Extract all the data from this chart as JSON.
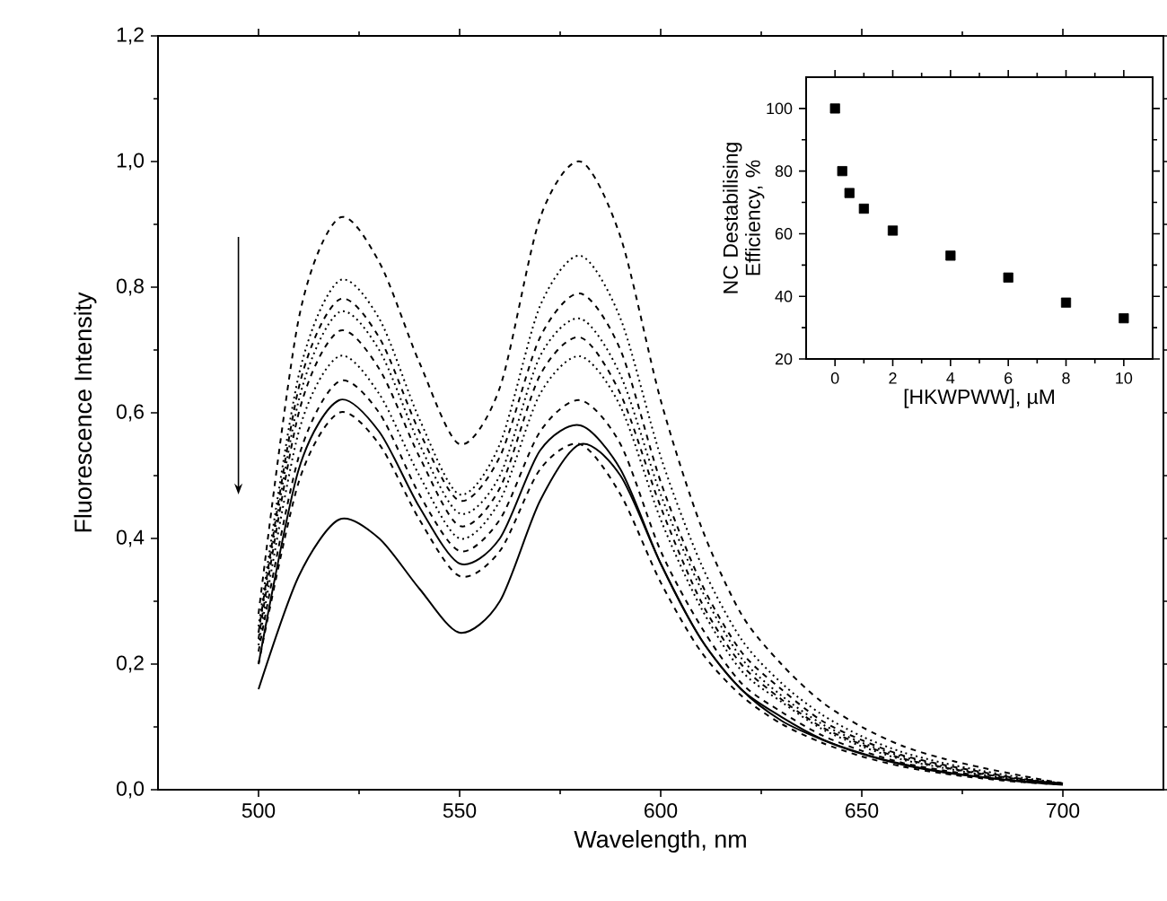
{
  "chart_data": [
    {
      "type": "line",
      "xlabel": "Wavelength, nm",
      "ylabel": "Fluorescence Intensity",
      "xlim": [
        475,
        725
      ],
      "ylim": [
        0,
        1.2
      ],
      "xticks": [
        500,
        550,
        600,
        650,
        700
      ],
      "yticks": [
        {
          "value": 0,
          "label": "0,0"
        },
        {
          "value": 0.2,
          "label": "0,2"
        },
        {
          "value": 0.4,
          "label": "0,4"
        },
        {
          "value": 0.6,
          "label": "0,6"
        },
        {
          "value": 0.8,
          "label": "0,8"
        },
        {
          "value": 1.0,
          "label": "1,0"
        },
        {
          "value": 1.2,
          "label": "1,2"
        }
      ],
      "x": [
        500,
        510,
        520,
        530,
        540,
        550,
        560,
        570,
        580,
        590,
        600,
        610,
        620,
        630,
        640,
        650,
        660,
        670,
        680,
        690,
        700
      ],
      "series": [
        {
          "color": "#000000",
          "line_style": "dashed",
          "values": [
            0.28,
            0.75,
            0.91,
            0.84,
            0.68,
            0.55,
            0.64,
            0.91,
            1.0,
            0.88,
            0.62,
            0.42,
            0.28,
            0.2,
            0.14,
            0.1,
            0.07,
            0.05,
            0.035,
            0.022,
            0.01
          ]
        },
        {
          "color": "#000000",
          "line_style": "dotted",
          "values": [
            0.26,
            0.66,
            0.81,
            0.75,
            0.59,
            0.47,
            0.55,
            0.77,
            0.85,
            0.75,
            0.53,
            0.36,
            0.24,
            0.17,
            0.12,
            0.085,
            0.06,
            0.043,
            0.03,
            0.019,
            0.01
          ]
        },
        {
          "color": "#000000",
          "line_style": "dashed",
          "values": [
            0.25,
            0.64,
            0.78,
            0.72,
            0.57,
            0.46,
            0.53,
            0.72,
            0.79,
            0.7,
            0.49,
            0.33,
            0.22,
            0.16,
            0.11,
            0.079,
            0.055,
            0.04,
            0.028,
            0.017,
            0.01
          ]
        },
        {
          "color": "#000000",
          "line_style": "dotted",
          "values": [
            0.25,
            0.62,
            0.76,
            0.7,
            0.55,
            0.44,
            0.5,
            0.69,
            0.75,
            0.66,
            0.47,
            0.32,
            0.21,
            0.15,
            0.105,
            0.075,
            0.053,
            0.038,
            0.026,
            0.017,
            0.01
          ]
        },
        {
          "color": "#000000",
          "line_style": "dashed",
          "values": [
            0.24,
            0.6,
            0.73,
            0.67,
            0.53,
            0.42,
            0.48,
            0.66,
            0.72,
            0.63,
            0.45,
            0.3,
            0.2,
            0.144,
            0.1,
            0.072,
            0.05,
            0.036,
            0.025,
            0.016,
            0.01
          ]
        },
        {
          "color": "#000000",
          "line_style": "dotted",
          "values": [
            0.23,
            0.57,
            0.69,
            0.63,
            0.5,
            0.4,
            0.46,
            0.63,
            0.69,
            0.61,
            0.43,
            0.29,
            0.19,
            0.14,
            0.097,
            0.069,
            0.048,
            0.035,
            0.024,
            0.015,
            0.01
          ]
        },
        {
          "color": "#000000",
          "line_style": "dashed",
          "values": [
            0.22,
            0.53,
            0.65,
            0.6,
            0.47,
            0.38,
            0.43,
            0.57,
            0.62,
            0.55,
            0.38,
            0.26,
            0.17,
            0.124,
            0.087,
            0.062,
            0.043,
            0.031,
            0.022,
            0.014,
            0.01
          ]
        },
        {
          "color": "#000000",
          "line_style": "solid",
          "values": [
            0.2,
            0.51,
            0.62,
            0.57,
            0.45,
            0.36,
            0.4,
            0.54,
            0.58,
            0.51,
            0.36,
            0.24,
            0.16,
            0.116,
            0.081,
            0.058,
            0.041,
            0.029,
            0.02,
            0.013,
            0.01
          ]
        },
        {
          "color": "#000000",
          "line_style": "dashed",
          "values": [
            0.2,
            0.49,
            0.6,
            0.55,
            0.43,
            0.34,
            0.38,
            0.51,
            0.55,
            0.47,
            0.33,
            0.22,
            0.15,
            0.105,
            0.075,
            0.053,
            0.037,
            0.026,
            0.018,
            0.012,
            0.008
          ]
        },
        {
          "color": "#000000",
          "line_style": "solid",
          "values": [
            0.16,
            0.34,
            0.43,
            0.4,
            0.32,
            0.25,
            0.3,
            0.46,
            0.55,
            0.5,
            0.36,
            0.24,
            0.16,
            0.11,
            0.08,
            0.057,
            0.04,
            0.028,
            0.02,
            0.013,
            0.008
          ]
        }
      ]
    },
    {
      "type": "scatter",
      "xlabel": "[HKWPWW], µM",
      "ylabel": "NC Destabilising Efficiency, %",
      "xlim": [
        -1,
        11
      ],
      "ylim": [
        20,
        110
      ],
      "xticks": [
        0,
        2,
        4,
        6,
        8,
        10
      ],
      "yticks": [
        20,
        40,
        60,
        80,
        100
      ],
      "marker": "square",
      "color": "#000000",
      "x": [
        0,
        0.25,
        0.5,
        1,
        2,
        4,
        6,
        8,
        10
      ],
      "values": [
        100,
        80,
        73,
        68,
        61,
        53,
        46,
        38,
        33
      ]
    }
  ]
}
